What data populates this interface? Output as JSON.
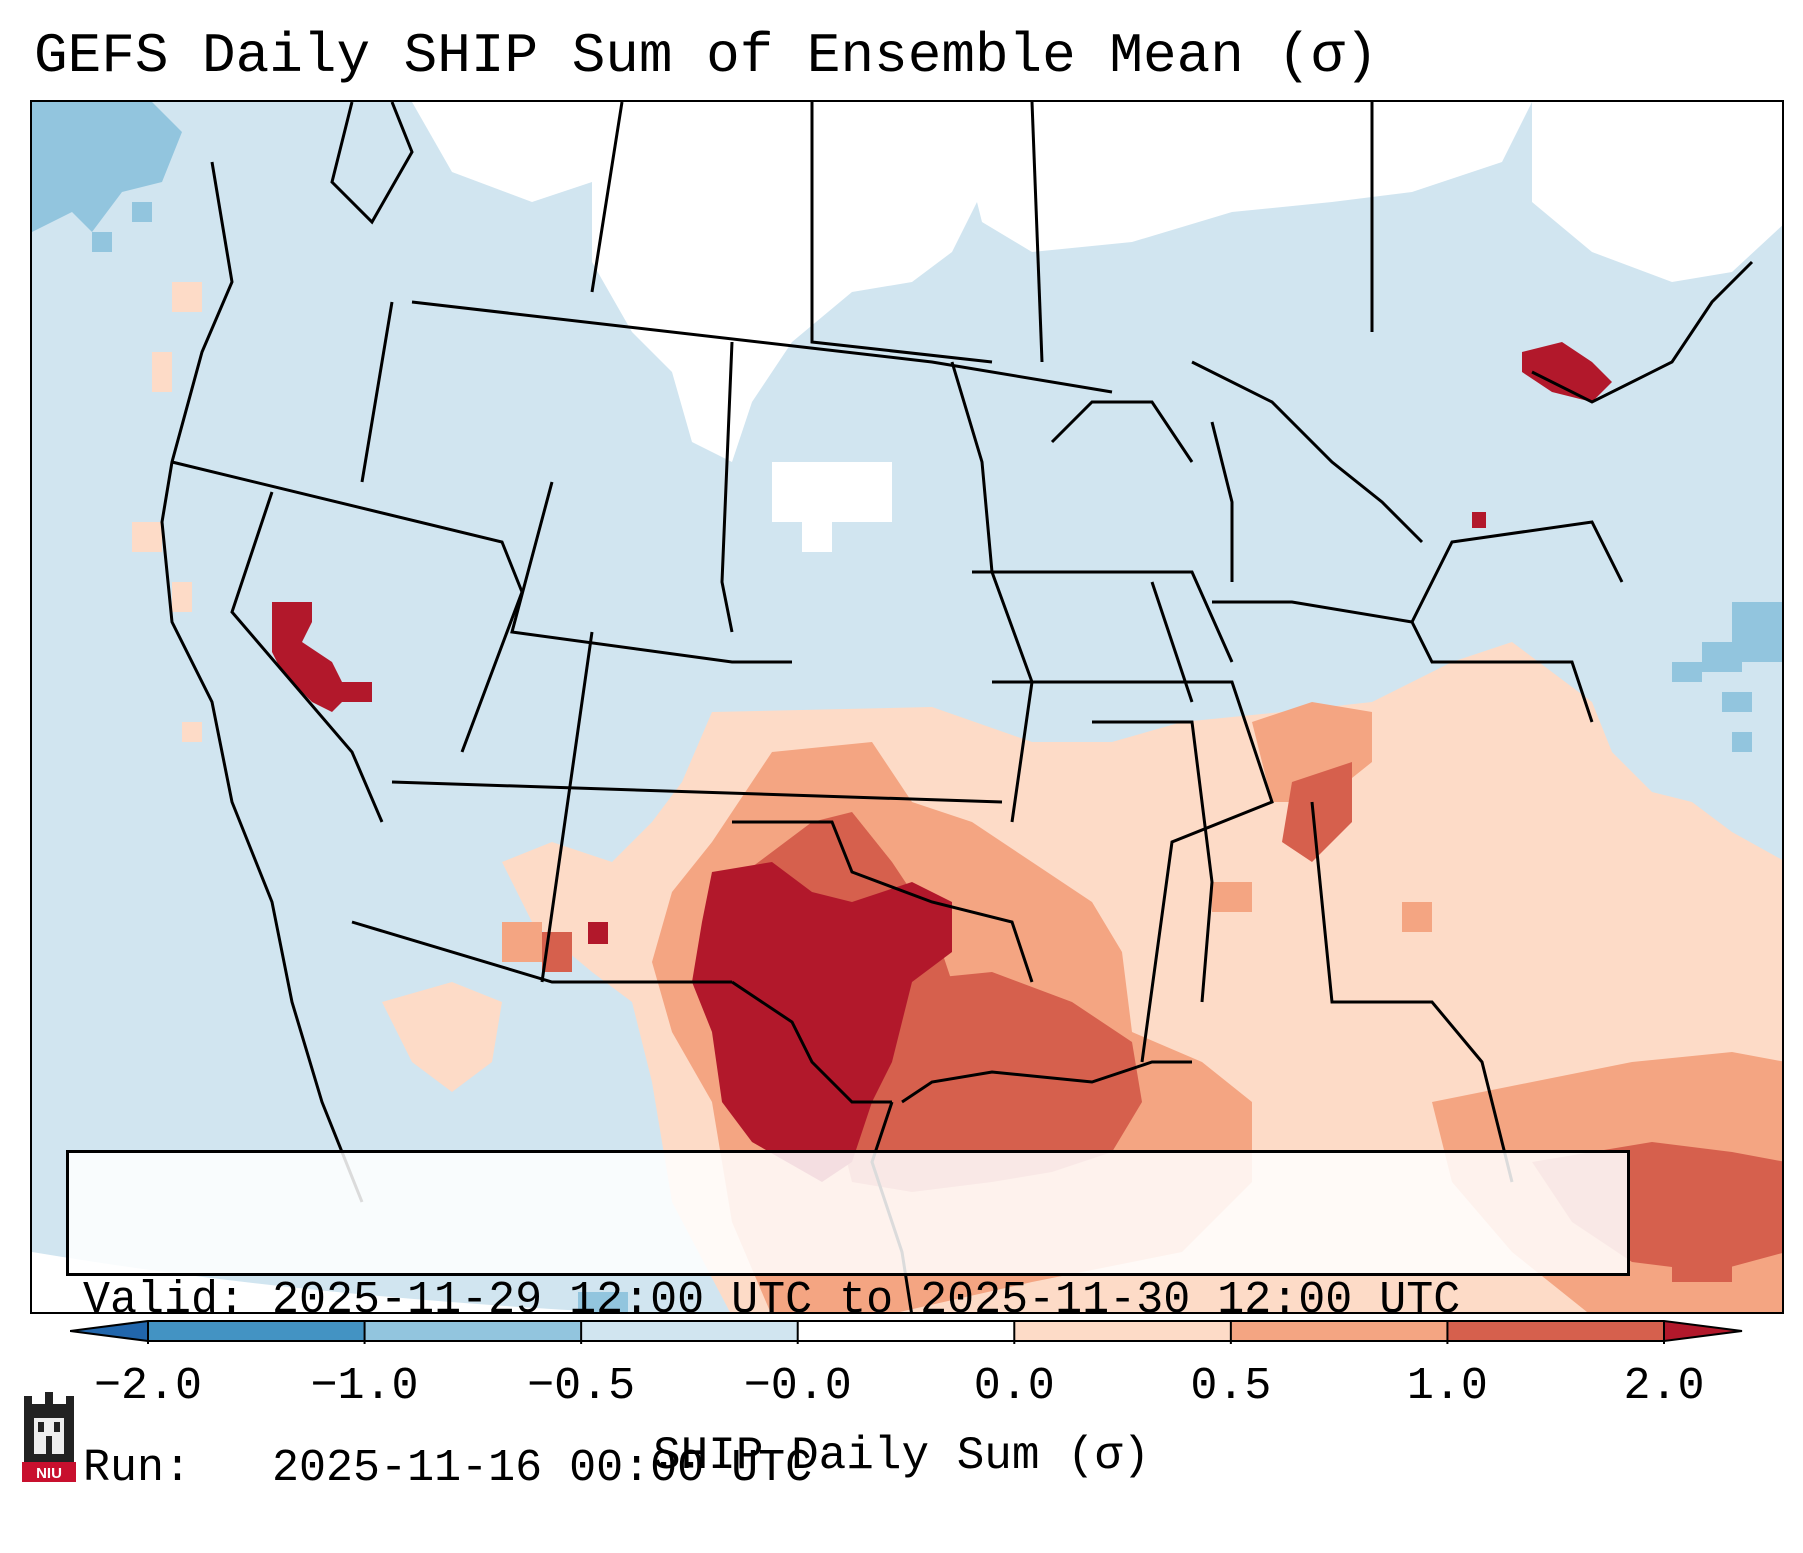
{
  "title": "GEFS Daily SHIP Sum of Ensemble Mean (σ)",
  "info": {
    "valid_label": "Valid:",
    "valid_value": "2025-11-29 12:00 UTC to 2025-11-30 12:00 UTC",
    "run_label": "Run:",
    "run_value": "2025-11-16 00:00 UTC"
  },
  "colorbar": {
    "label": "SHIP Daily Sum (σ)",
    "ticks": [
      "−2.0",
      "−1.0",
      "−0.5",
      "−0.0",
      "0.0",
      "0.5",
      "1.0",
      "2.0"
    ],
    "bins": [
      {
        "range": "-2.0 to -1.0",
        "color": "#4393c3"
      },
      {
        "range": "-1.0 to -0.5",
        "color": "#92c5de"
      },
      {
        "range": "-0.5 to -0.0",
        "color": "#d1e5f0"
      },
      {
        "range": "-0.0 to 0.0",
        "color": "#ffffff"
      },
      {
        "range": "0.0 to 0.5",
        "color": "#fddbc7"
      },
      {
        "range": "0.5 to 1.0",
        "color": "#f4a582"
      },
      {
        "range": "1.0 to 2.0",
        "color": "#d6604d"
      },
      {
        "range": "> 2.0",
        "color": "#b2182b"
      }
    ],
    "under_color": "#2166ac",
    "over_color": "#b2182b"
  },
  "colors": {
    "ocean_land_background": "#d1e5f0",
    "neutral": "#ffffff",
    "light_red": "#fddbc7",
    "medium_red": "#f4a582",
    "red": "#d6604d",
    "dark_red": "#b2182b",
    "light_blue": "#92c5de"
  },
  "logo": {
    "text": "NIU",
    "icon": "niu-logo-icon"
  }
}
